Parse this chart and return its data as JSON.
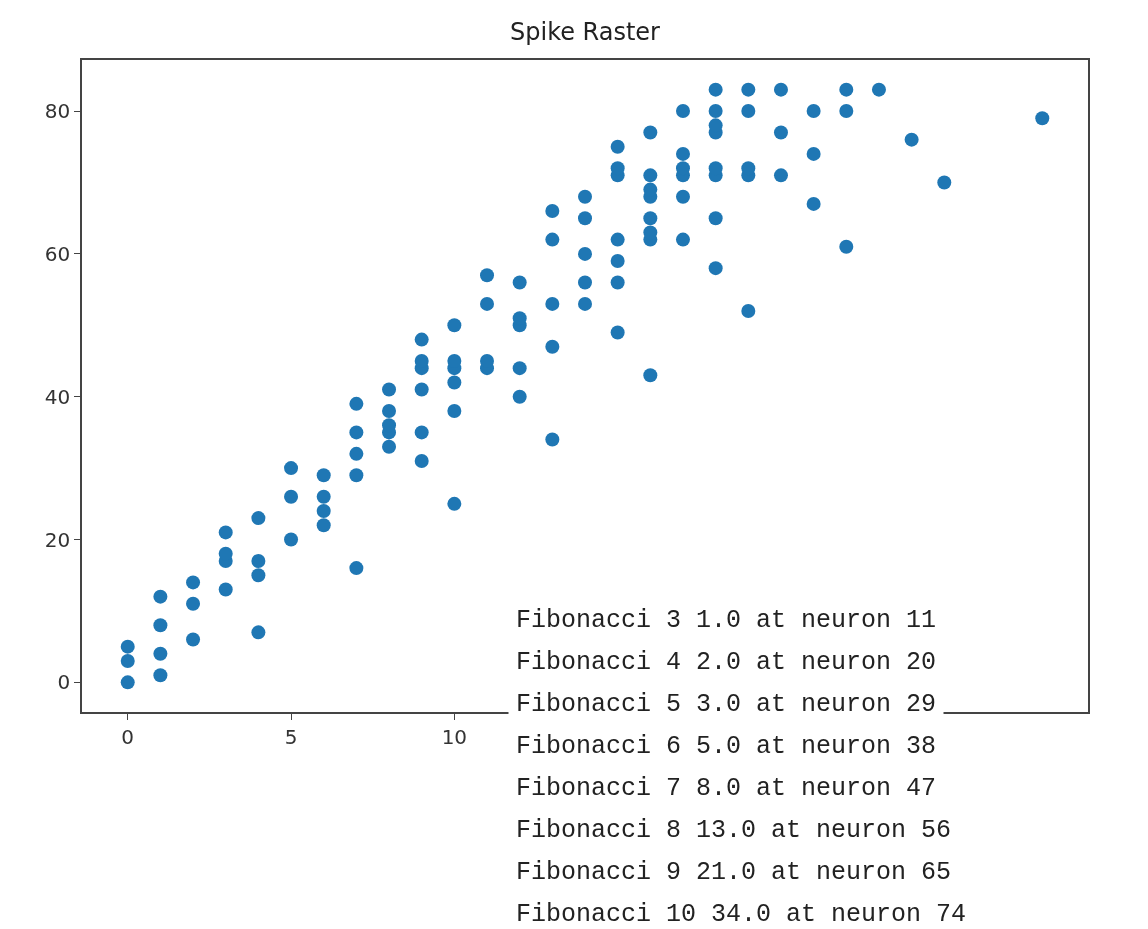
{
  "chart_data": {
    "type": "scatter",
    "title": "Spike Raster",
    "x": [
      0,
      0,
      0,
      1,
      1,
      1,
      1,
      2,
      2,
      2,
      3,
      3,
      3,
      3,
      4,
      4,
      4,
      4,
      5,
      5,
      5,
      6,
      6,
      6,
      6,
      7,
      7,
      7,
      7,
      7,
      8,
      8,
      8,
      8,
      8,
      9,
      9,
      9,
      9,
      9,
      9,
      10,
      10,
      10,
      10,
      10,
      10,
      11,
      11,
      11,
      11,
      12,
      12,
      12,
      12,
      12,
      13,
      13,
      13,
      13,
      13,
      14,
      14,
      14,
      14,
      14,
      15,
      15,
      15,
      15,
      15,
      15,
      15,
      16,
      16,
      16,
      16,
      16,
      16,
      16,
      16,
      17,
      17,
      17,
      17,
      17,
      17,
      18,
      18,
      18,
      18,
      18,
      18,
      18,
      18,
      19,
      19,
      19,
      19,
      19,
      20,
      20,
      20,
      21,
      21,
      21,
      22,
      22,
      22,
      23,
      24,
      25,
      28
    ],
    "values": [
      0,
      3,
      5,
      1,
      4,
      8,
      12,
      6,
      11,
      14,
      13,
      17,
      18,
      21,
      7,
      15,
      17,
      23,
      20,
      26,
      30,
      22,
      24,
      26,
      29,
      16,
      29,
      32,
      35,
      39,
      33,
      35,
      36,
      38,
      41,
      31,
      35,
      41,
      44,
      45,
      48,
      25,
      38,
      42,
      44,
      45,
      50,
      44,
      45,
      53,
      57,
      40,
      44,
      50,
      51,
      56,
      34,
      47,
      53,
      62,
      66,
      53,
      56,
      60,
      65,
      68,
      49,
      56,
      59,
      62,
      71,
      72,
      75,
      43,
      62,
      63,
      65,
      68,
      69,
      71,
      77,
      62,
      68,
      71,
      72,
      74,
      80,
      58,
      65,
      71,
      72,
      77,
      78,
      80,
      83,
      52,
      71,
      72,
      80,
      83,
      71,
      77,
      83,
      67,
      74,
      80,
      61,
      80,
      83,
      83,
      76,
      70,
      79
    ],
    "color": "#1f77b4",
    "marker": "circle",
    "xlim": [
      -1.4,
      29.4
    ],
    "xticks": [
      0,
      5,
      10
    ],
    "ylim": [
      -4.15,
      87.15
    ],
    "yticks": [
      0,
      20,
      40,
      60,
      80
    ],
    "annotations": [
      "Fibonacci 3 1.0 at neuron 11",
      "Fibonacci 4 2.0 at neuron 20",
      "Fibonacci 5 3.0 at neuron 29",
      "Fibonacci 6 5.0 at neuron 38",
      "Fibonacci 7 8.0 at neuron 47",
      "Fibonacci 8 13.0 at neuron 56",
      "Fibonacci 9 21.0 at neuron 65",
      "Fibonacci 10 34.0 at neuron 74"
    ]
  }
}
